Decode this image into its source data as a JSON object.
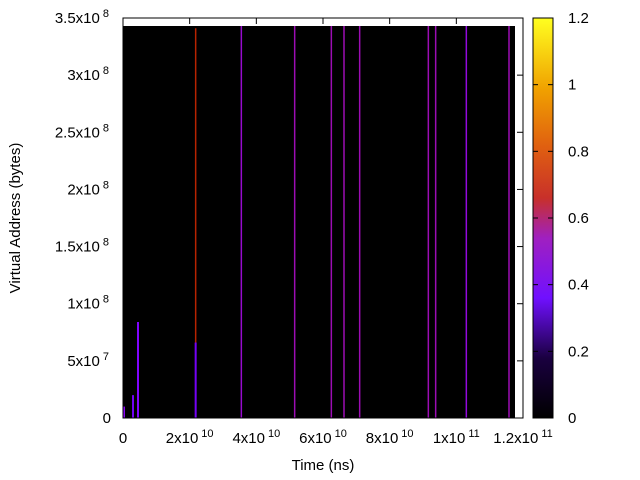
{
  "chart_data": {
    "type": "heatmap",
    "xlabel": "Time (ns)",
    "ylabel": "Virtual Address (bytes)",
    "xlim": [
      0,
      120000000000
    ],
    "ylim": [
      0,
      350000000
    ],
    "x_ticks": [
      {
        "value": 0,
        "mant": "0",
        "exp": ""
      },
      {
        "value": 20000000000,
        "mant": "2x10",
        "exp": "10"
      },
      {
        "value": 40000000000,
        "mant": "4x10",
        "exp": "10"
      },
      {
        "value": 60000000000,
        "mant": "6x10",
        "exp": "10"
      },
      {
        "value": 80000000000,
        "mant": "8x10",
        "exp": "10"
      },
      {
        "value": 100000000000,
        "mant": "1x10",
        "exp": "11"
      },
      {
        "value": 120000000000,
        "mant": "1.2x10",
        "exp": "11"
      }
    ],
    "y_ticks": [
      {
        "value": 0,
        "mant": "0",
        "exp": ""
      },
      {
        "value": 50000000,
        "mant": "5x10",
        "exp": "7"
      },
      {
        "value": 100000000,
        "mant": "1x10",
        "exp": "8"
      },
      {
        "value": 150000000,
        "mant": "1.5x10",
        "exp": "8"
      },
      {
        "value": 200000000,
        "mant": "2x10",
        "exp": "8"
      },
      {
        "value": 250000000,
        "mant": "2.5x10",
        "exp": "8"
      },
      {
        "value": 300000000,
        "mant": "3x10",
        "exp": "8"
      },
      {
        "value": 350000000,
        "mant": "3.5x10",
        "exp": "8"
      }
    ],
    "colorbar": {
      "range": [
        0,
        1.2
      ],
      "ticks": [
        "0",
        "0.2",
        "0.4",
        "0.6",
        "0.8",
        "1",
        "1.2"
      ],
      "colormap": "black-purple-red-orange-yellow"
    },
    "data_extent": {
      "x": [
        0,
        120000000000
      ],
      "y": [
        0,
        343000000
      ]
    },
    "stripes": [
      {
        "x": 21800000000,
        "y0": 0,
        "y1": 341000000,
        "value": 0.62
      },
      {
        "x": 35500000000,
        "y0": 0,
        "y1": 343000000,
        "value": 0.42
      },
      {
        "x": 51500000000,
        "y0": 0,
        "y1": 343000000,
        "value": 0.45
      },
      {
        "x": 62500000000,
        "y0": 0,
        "y1": 343000000,
        "value": 0.45
      },
      {
        "x": 66300000000,
        "y0": 0,
        "y1": 343000000,
        "value": 0.45
      },
      {
        "x": 71000000000,
        "y0": 0,
        "y1": 343000000,
        "value": 0.45
      },
      {
        "x": 91600000000,
        "y0": 0,
        "y1": 343000000,
        "value": 0.45
      },
      {
        "x": 93800000000,
        "y0": 0,
        "y1": 343000000,
        "value": 0.45
      },
      {
        "x": 103000000000,
        "y0": 0,
        "y1": 343000000,
        "value": 0.4
      },
      {
        "x": 115800000000,
        "y0": 0,
        "y1": 343000000,
        "value": 0.45
      }
    ],
    "segments": [
      {
        "x": 300000000,
        "y0": 0,
        "y1": 10000000,
        "value": 0.35
      },
      {
        "x": 3000000000,
        "y0": 0,
        "y1": 20000000,
        "value": 0.25
      },
      {
        "x": 4500000000,
        "y0": 0,
        "y1": 84000000,
        "value": 0.3
      },
      {
        "x": 21800000000,
        "y0": 0,
        "y1": 66000000,
        "value": 0.25
      }
    ]
  }
}
